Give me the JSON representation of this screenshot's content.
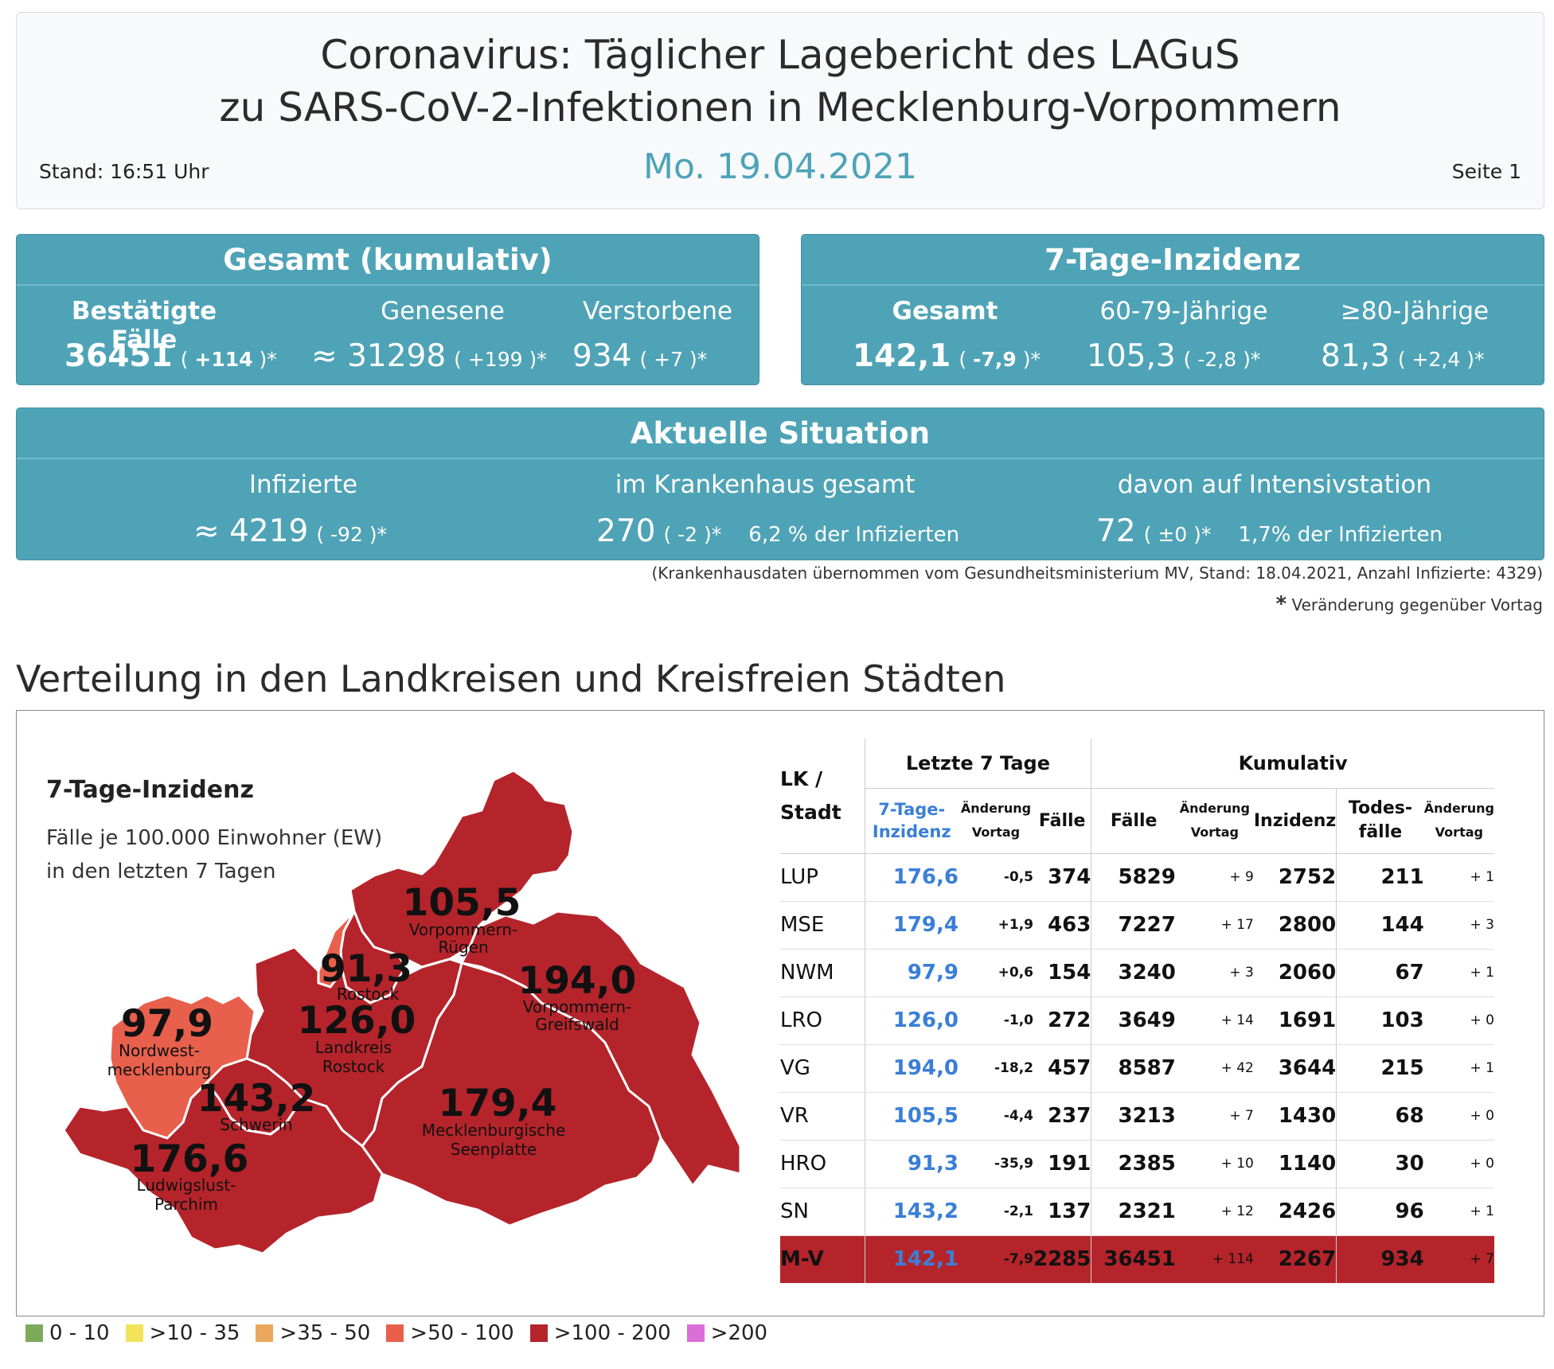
{
  "header": {
    "title_line1": "Coronavirus: Täglicher Lagebericht des LAGuS",
    "title_line2": "zu SARS-CoV-2-Infektionen in Mecklenburg-Vorpommern",
    "date": "Mo. 19.04.2021",
    "stand": "Stand: 16:51 Uhr",
    "page": "Seite 1"
  },
  "gesamt": {
    "title": "Gesamt (kumulativ)",
    "bestaetigt": {
      "label": "Bestätigte Fälle",
      "value": "36451",
      "change": "+114"
    },
    "genesene": {
      "label": "Genesene",
      "value": "≈ 31298",
      "change": "+199"
    },
    "verstorbene": {
      "label": "Verstorbene",
      "value": "934",
      "change": "+7"
    }
  },
  "inzidenz": {
    "title": "7-Tage-Inzidenz",
    "gesamt": {
      "label": "Gesamt",
      "value": "142,1",
      "change": "-7,9"
    },
    "age60": {
      "label": "60-79-Jährige",
      "value": "105,3",
      "change": "-2,8"
    },
    "age80": {
      "label": "≥80-Jährige",
      "value": "81,3",
      "change": "+2,4"
    }
  },
  "aktuell": {
    "title": "Aktuelle Situation",
    "infizierte": {
      "label": "Infizierte",
      "value": "≈ 4219",
      "change": "-92"
    },
    "krankenhaus": {
      "label": "im Krankenhaus gesamt",
      "value": "270",
      "change": "-2",
      "note": "6,2 % der Infizierten"
    },
    "intensiv": {
      "label": "davon auf Intensivstation",
      "value": "72",
      "change": "±0",
      "note": "1,7% der Infizierten"
    }
  },
  "footnotes": {
    "krankenhaus": "(Krankenhausdaten übernommen vom Gesundheitsministerium MV, Stand: 18.04.2021, Anzahl Infizierte: 4329)",
    "star": "*",
    "veraenderung": "Veränderung gegenüber Vortag"
  },
  "section_title": "Verteilung in den Landkreisen und Kreisfreien Städten",
  "map": {
    "title": "7-Tage-Inzidenz",
    "subtitle_line1": "Fälle je 100.000 Einwohner (EW)",
    "subtitle_line2": "in den letzten 7 Tagen",
    "regions": [
      {
        "value": "105,5",
        "name1": "Vorpommern-",
        "name2": "Rügen"
      },
      {
        "value": "91,3",
        "name1": "Rostock",
        "name2": ""
      },
      {
        "value": "194,0",
        "name1": "Vorpommern-",
        "name2": "Greifswald"
      },
      {
        "value": "126,0",
        "name1": "Landkreis",
        "name2": "Rostock"
      },
      {
        "value": "97,9",
        "name1": "Nordwest-",
        "name2": "mecklenburg"
      },
      {
        "value": "143,2",
        "name1": "Schwerin",
        "name2": ""
      },
      {
        "value": "179,4",
        "name1": "Mecklenburgische",
        "name2": "Seenplatte"
      },
      {
        "value": "176,6",
        "name1": "Ludwigslust-",
        "name2": "Parchim"
      }
    ],
    "colors": {
      "high": "#b5242b",
      "mid": "#e8604c",
      "border": "#ffffff"
    }
  },
  "table": {
    "group_last7": "Letzte 7 Tage",
    "group_kumulativ": "Kumulativ",
    "col_lk_line1": "LK /",
    "col_lk_line2": "Stadt",
    "col_inz_line1": "7-Tage-",
    "col_inz_line2": "Inzidenz",
    "col_aend_line1": "Änderung",
    "col_aend_line2": "Vortag",
    "col_faelle": "Fälle",
    "col_faelle2": "Fälle",
    "col_inzidenz": "Inzidenz",
    "col_todes_line1": "Todes-",
    "col_todes_line2": "fälle",
    "rows": [
      {
        "name": "LUP",
        "inz": "176,6",
        "inz_chg": "-0,5",
        "f7": "374",
        "faelle": "5829",
        "f_chg": "+ 9",
        "inzidenz": "2752",
        "tod": "211",
        "tod_chg": "+ 1"
      },
      {
        "name": "MSE",
        "inz": "179,4",
        "inz_chg": "+1,9",
        "f7": "463",
        "faelle": "7227",
        "f_chg": "+ 17",
        "inzidenz": "2800",
        "tod": "144",
        "tod_chg": "+ 3"
      },
      {
        "name": "NWM",
        "inz": "97,9",
        "inz_chg": "+0,6",
        "f7": "154",
        "faelle": "3240",
        "f_chg": "+ 3",
        "inzidenz": "2060",
        "tod": "67",
        "tod_chg": "+ 1"
      },
      {
        "name": "LRO",
        "inz": "126,0",
        "inz_chg": "-1,0",
        "f7": "272",
        "faelle": "3649",
        "f_chg": "+ 14",
        "inzidenz": "1691",
        "tod": "103",
        "tod_chg": "+ 0"
      },
      {
        "name": "VG",
        "inz": "194,0",
        "inz_chg": "-18,2",
        "f7": "457",
        "faelle": "8587",
        "f_chg": "+ 42",
        "inzidenz": "3644",
        "tod": "215",
        "tod_chg": "+ 1"
      },
      {
        "name": "VR",
        "inz": "105,5",
        "inz_chg": "-4,4",
        "f7": "237",
        "faelle": "3213",
        "f_chg": "+ 7",
        "inzidenz": "1430",
        "tod": "68",
        "tod_chg": "+ 0"
      },
      {
        "name": "HRO",
        "inz": "91,3",
        "inz_chg": "-35,9",
        "f7": "191",
        "faelle": "2385",
        "f_chg": "+ 10",
        "inzidenz": "1140",
        "tod": "30",
        "tod_chg": "+ 0"
      },
      {
        "name": "SN",
        "inz": "143,2",
        "inz_chg": "-2,1",
        "f7": "137",
        "faelle": "2321",
        "f_chg": "+ 12",
        "inzidenz": "2426",
        "tod": "96",
        "tod_chg": "+ 1"
      }
    ],
    "total": {
      "name": "M-V",
      "inz": "142,1",
      "inz_chg": "-7,9",
      "f7": "2285",
      "faelle": "36451",
      "f_chg": "+ 114",
      "inzidenz": "2267",
      "tod": "934",
      "tod_chg": "+ 7"
    }
  },
  "legend": [
    {
      "label": "0 - 10",
      "color": "#7cab5b"
    },
    {
      "label": ">10 - 35",
      "color": "#f3e35a"
    },
    {
      "label": ">35 - 50",
      "color": "#eba75b"
    },
    {
      "label": ">50 - 100",
      "color": "#e8604c"
    },
    {
      "label": ">100 - 200",
      "color": "#b5242b"
    },
    {
      "label": ">200",
      "color": "#dc6ed8"
    }
  ]
}
